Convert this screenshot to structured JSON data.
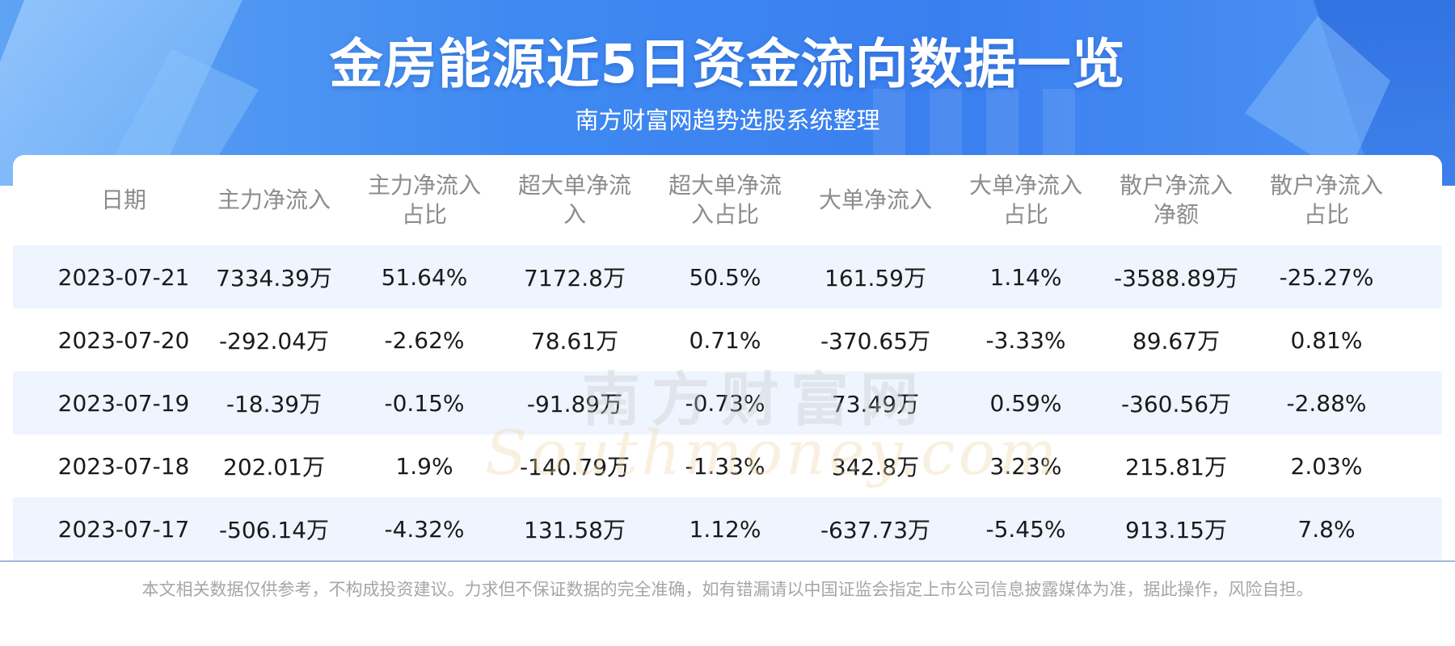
{
  "header": {
    "title": "金房能源近5日资金流向数据一览",
    "subtitle": "南方财富网趋势选股系统整理"
  },
  "table": {
    "headers": [
      [
        "日期"
      ],
      [
        "主力净流入"
      ],
      [
        "主力净流入",
        "占比"
      ],
      [
        "超大单净流",
        "入"
      ],
      [
        "超大单净流",
        "入占比"
      ],
      [
        "大单净流入"
      ],
      [
        "大单净流入",
        "占比"
      ],
      [
        "散户净流入",
        "净额"
      ],
      [
        "散户净流入",
        "占比"
      ]
    ],
    "rows": [
      [
        "2023-07-21",
        "7334.39万",
        "51.64%",
        "7172.8万",
        "50.5%",
        "161.59万",
        "1.14%",
        "-3588.89万",
        "-25.27%"
      ],
      [
        "2023-07-20",
        "-292.04万",
        "-2.62%",
        "78.61万",
        "0.71%",
        "-370.65万",
        "-3.33%",
        "89.67万",
        "0.81%"
      ],
      [
        "2023-07-19",
        "-18.39万",
        "-0.15%",
        "-91.89万",
        "-0.73%",
        "73.49万",
        "0.59%",
        "-360.56万",
        "-2.88%"
      ],
      [
        "2023-07-18",
        "202.01万",
        "1.9%",
        "-140.79万",
        "-1.33%",
        "342.8万",
        "3.23%",
        "215.81万",
        "2.03%"
      ],
      [
        "2023-07-17",
        "-506.14万",
        "-4.32%",
        "131.58万",
        "1.12%",
        "-637.73万",
        "-5.45%",
        "913.15万",
        "7.8%"
      ]
    ]
  },
  "watermark": {
    "cn": "南方财富网",
    "en": "Southmoney.com"
  },
  "footer": {
    "disclaimer": "本文相关数据仅供参考，不构成投资建议。力求但不保证数据的完全准确，如有错漏请以中国证监会指定上市公司信息披露媒体为准，据此操作，风险自担。"
  },
  "colors": {
    "header_blue": "#3f8af2",
    "row_alt": "#eef5ff",
    "header_text": "#8c8c8c",
    "cell_text": "#1a1a1a"
  }
}
